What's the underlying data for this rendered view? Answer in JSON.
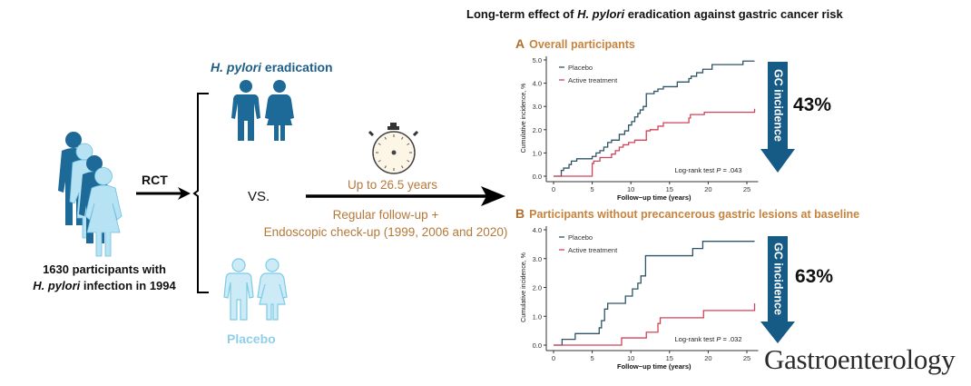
{
  "main_title": {
    "prefix": "Long-term effect of ",
    "italic": "H. pylori",
    "suffix": " eradication against gastric cancer risk"
  },
  "left": {
    "participants_line1": "1630 participants with",
    "participants_italic": "H. pylori",
    "participants_line2_suffix": " infection in 1994",
    "rct_label": "RCT",
    "vs_label": "VS.",
    "eradication_italic": "H. pylori",
    "eradication_suffix": " eradication",
    "placebo_label": "Placebo"
  },
  "followup": {
    "duration": "Up to 26.5 years",
    "line1": "Regular follow-up +",
    "line2": "Endoscopic check-up (1999, 2006 and 2020)"
  },
  "colors": {
    "dark_blue": "#1d6a98",
    "light_blue": "#b7e2f3",
    "placebo_line": "#2e5466",
    "active_line": "#d0445a",
    "accent_orange": "#c6833d",
    "arrow_blue": "#165b85"
  },
  "arrows": [
    {
      "label": "GC incidence",
      "reduction": "43%"
    },
    {
      "label": "GC incidence",
      "reduction": "63%"
    }
  ],
  "journal": "Gastroenterology",
  "chart_data": [
    {
      "type": "line",
      "panel_letter": "A",
      "title": "Overall participants",
      "xlabel": "Follow−up time (years)",
      "ylabel": "Cumulative incidence, %",
      "xlim": [
        0,
        26
      ],
      "ylim": [
        0,
        5
      ],
      "xticks": [
        0,
        5,
        10,
        15,
        20,
        25
      ],
      "yticks": [
        "0.0",
        "1.0",
        "2.0",
        "3.0",
        "4.0",
        "5.0"
      ],
      "yticks_values": [
        0,
        1,
        2,
        3,
        4,
        5
      ],
      "legend": [
        "Placebo",
        "Active treatment"
      ],
      "legend_position": "top-left",
      "annotation": {
        "prefix": "Log-rank test ",
        "italic": "P",
        "suffix": " = .043"
      },
      "series": [
        {
          "name": "Placebo",
          "step_x": [
            0,
            1.0,
            1.3,
            2.0,
            2.3,
            3.0,
            5.0,
            5.5,
            6.0,
            6.5,
            7.0,
            7.5,
            8.5,
            9.2,
            9.7,
            10.1,
            10.5,
            10.9,
            11.2,
            11.6,
            12.0,
            13.0,
            13.5,
            14.2,
            16.0,
            17.5,
            17.8,
            18.5,
            19.3,
            20.5,
            24.5,
            26.0
          ],
          "step_y": [
            0,
            0.25,
            0.35,
            0.5,
            0.65,
            0.75,
            0.85,
            1.0,
            1.1,
            1.25,
            1.45,
            1.55,
            1.8,
            1.95,
            2.2,
            2.35,
            2.55,
            2.7,
            2.85,
            3.0,
            3.55,
            3.65,
            3.75,
            3.85,
            4.05,
            4.2,
            4.3,
            4.45,
            4.6,
            4.8,
            4.95,
            4.95
          ]
        },
        {
          "name": "Active treatment",
          "step_x": [
            0,
            5.0,
            5.2,
            6.0,
            7.5,
            8.0,
            8.5,
            9.0,
            9.7,
            10.5,
            12.0,
            12.5,
            13.5,
            14.2,
            17.5,
            17.7,
            19.5,
            25.8,
            26.0
          ],
          "step_y": [
            0,
            0.55,
            0.65,
            0.8,
            0.95,
            1.1,
            1.25,
            1.35,
            1.45,
            1.55,
            1.95,
            2.0,
            2.15,
            2.3,
            2.5,
            2.65,
            2.75,
            2.75,
            2.9
          ]
        }
      ]
    },
    {
      "type": "line",
      "panel_letter": "B",
      "title": "Participants without precancerous gastric lesions at baseline",
      "xlabel": "Follow−up time (years)",
      "ylabel": "Cumulative incidence, %",
      "xlim": [
        0,
        26
      ],
      "ylim": [
        0,
        4
      ],
      "xticks": [
        0,
        5,
        10,
        15,
        20,
        25
      ],
      "yticks": [
        "0.0",
        "1.0",
        "2.0",
        "3.0",
        "4.0"
      ],
      "yticks_values": [
        0,
        1,
        2,
        3,
        4
      ],
      "legend": [
        "Placebo",
        "Active treatment"
      ],
      "legend_position": "top-left",
      "annotation": {
        "prefix": "Log-rank test ",
        "italic": "P",
        "suffix": " = .032"
      },
      "series": [
        {
          "name": "Placebo",
          "step_x": [
            0,
            1.1,
            2.8,
            5.9,
            6.2,
            6.6,
            7.0,
            9.3,
            10.2,
            10.9,
            11.3,
            11.9,
            18.0,
            19.3,
            26.0
          ],
          "step_y": [
            0,
            0.2,
            0.4,
            0.6,
            0.85,
            1.25,
            1.45,
            1.7,
            1.95,
            2.15,
            2.4,
            3.1,
            3.35,
            3.6,
            3.6
          ]
        },
        {
          "name": "Active treatment",
          "step_x": [
            0,
            8.8,
            12.0,
            13.5,
            13.8,
            19.4,
            25.8,
            26.0
          ],
          "step_y": [
            0,
            0.25,
            0.45,
            0.75,
            0.95,
            1.2,
            1.2,
            1.45
          ]
        }
      ]
    }
  ]
}
